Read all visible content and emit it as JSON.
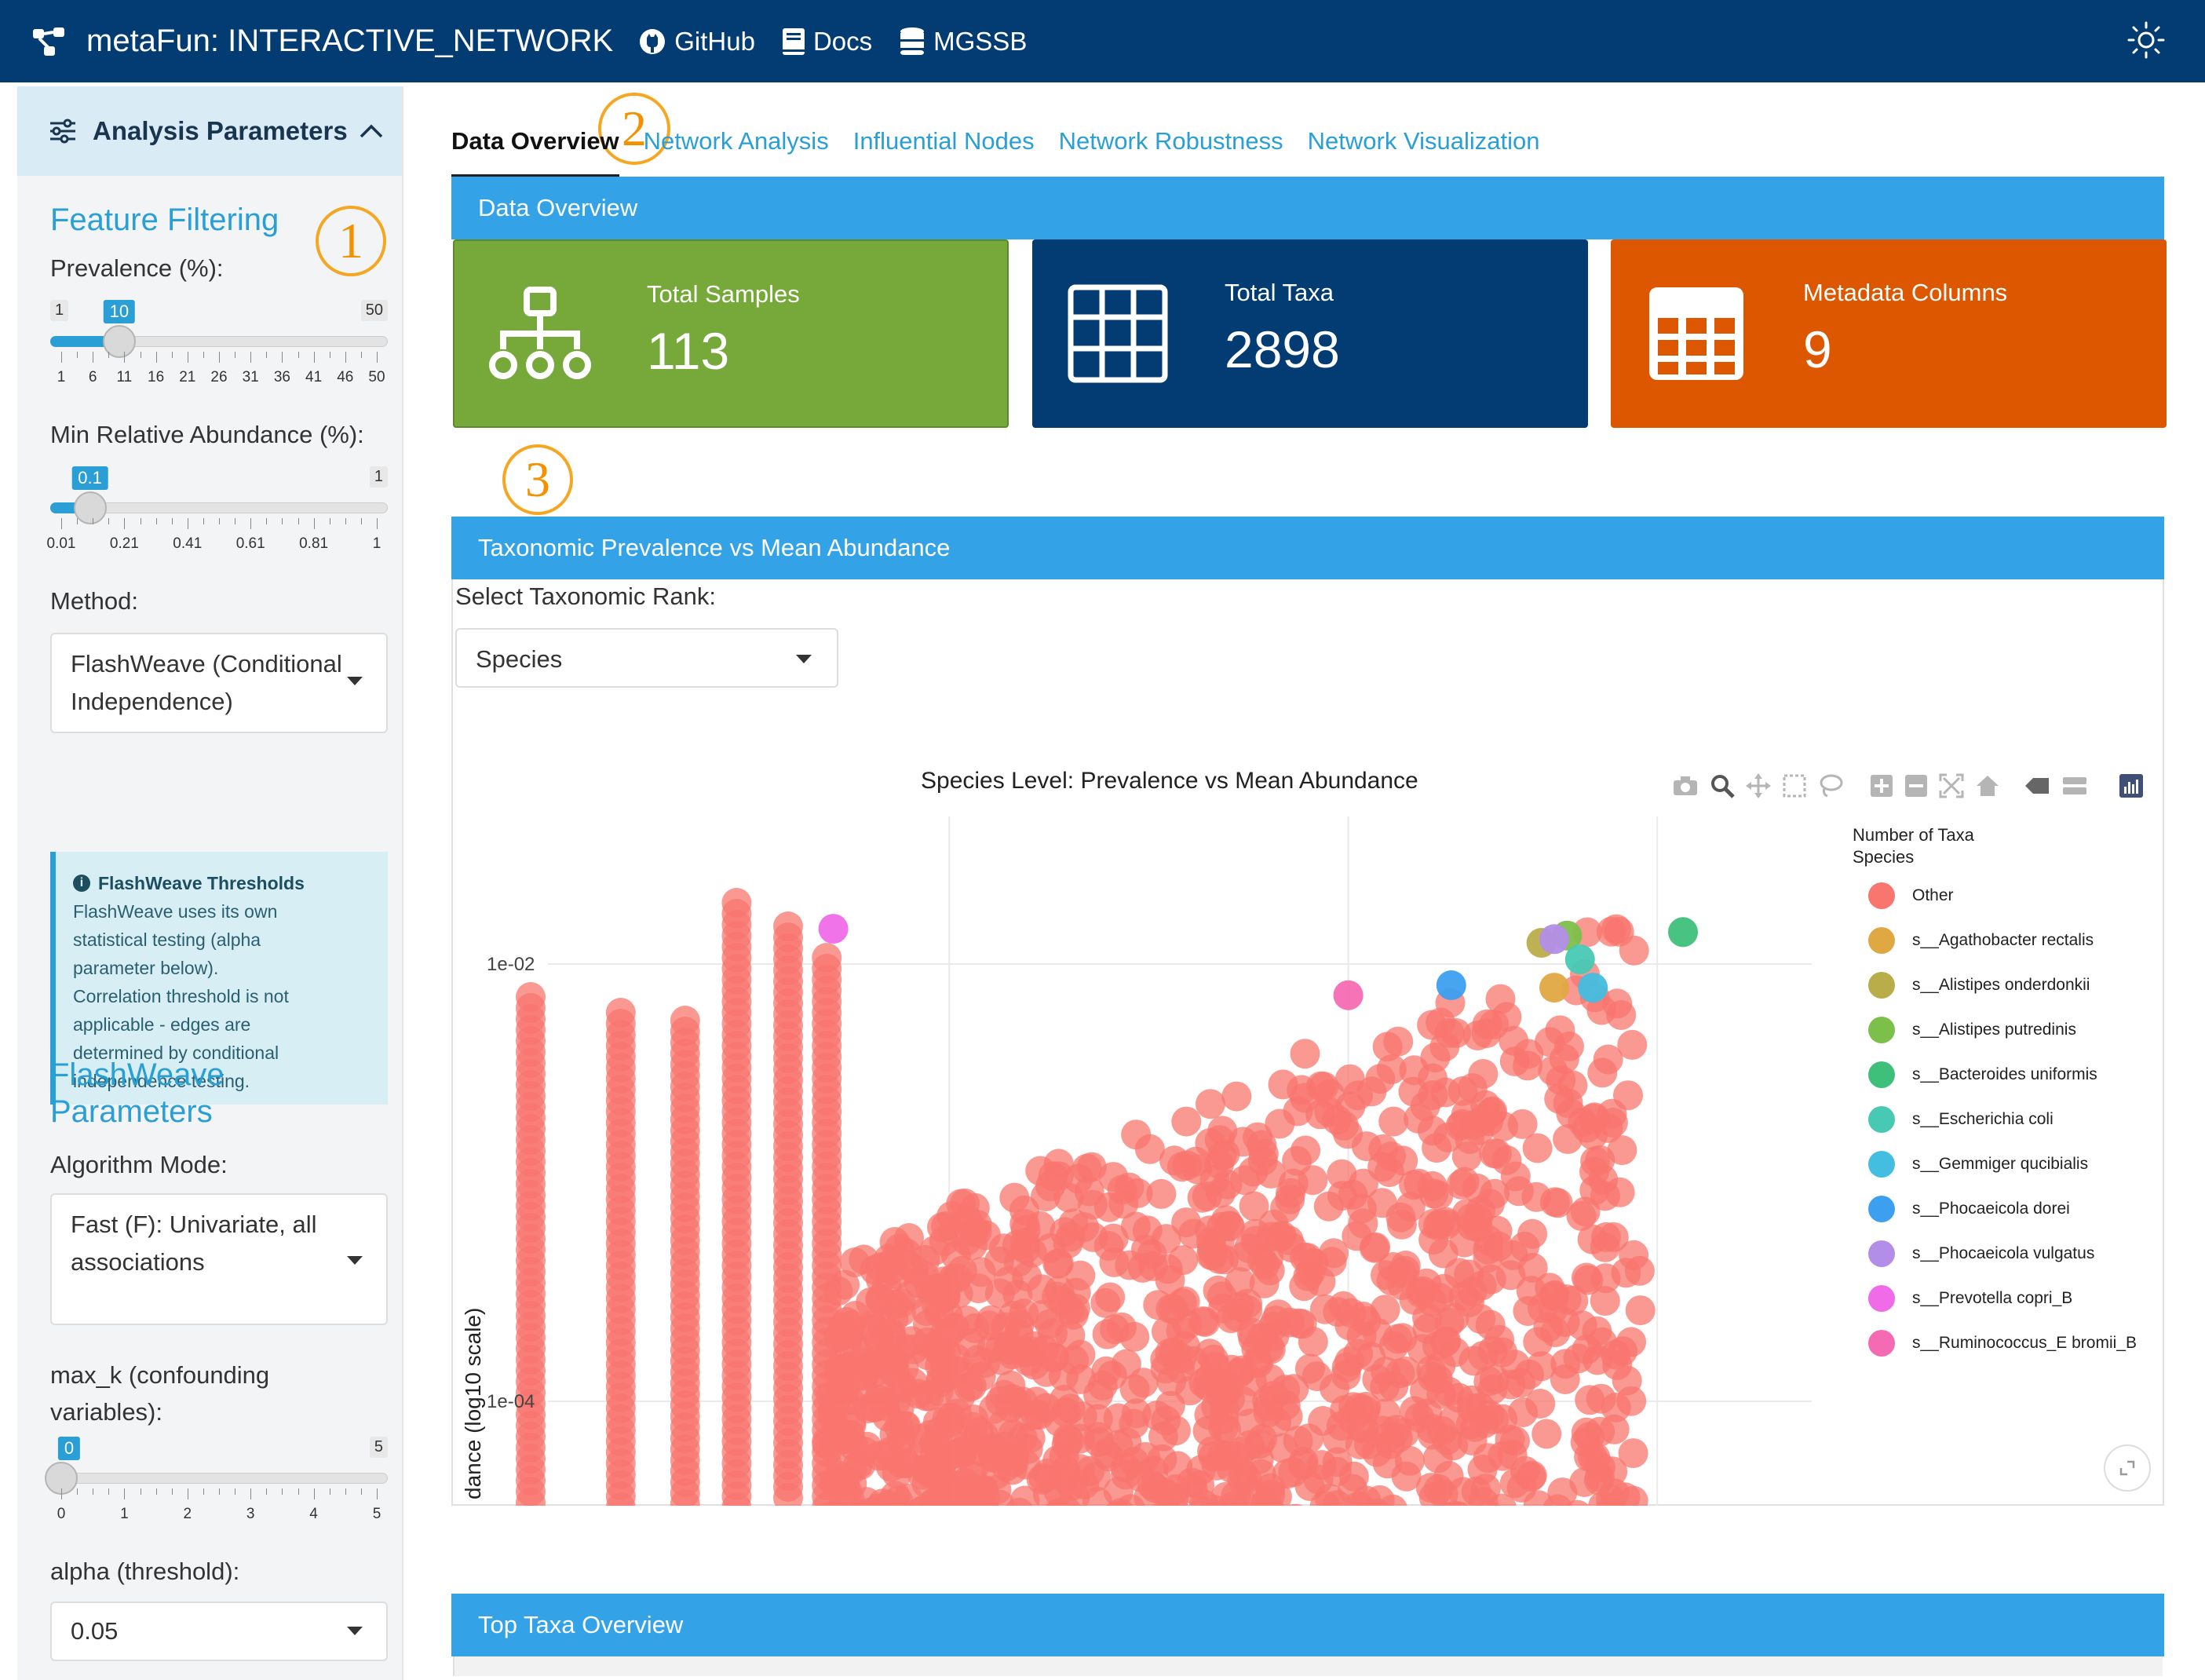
{
  "navbar": {
    "title": "metaFun: INTERACTIVE_NETWORK",
    "links": [
      {
        "label": "GitHub",
        "icon": "github-icon"
      },
      {
        "label": "Docs",
        "icon": "book-icon"
      },
      {
        "label": "MGSSB",
        "icon": "database-icon"
      }
    ],
    "theme_icon": "sun-icon"
  },
  "sidebar": {
    "header": "Analysis Parameters",
    "feature_filtering_title": "Feature Filtering",
    "prevalence": {
      "label": "Prevalence (%):",
      "min": 1,
      "max": 50,
      "value": 10,
      "min_label": "1",
      "max_label": "50",
      "value_label": "10",
      "ticks": [
        "1",
        "6",
        "11",
        "16",
        "21",
        "26",
        "31",
        "36",
        "41",
        "46",
        "50"
      ]
    },
    "abundance": {
      "label": "Min Relative Abundance (%):",
      "min": 0.01,
      "max": 1,
      "value": 0.1,
      "min_label": "",
      "max_label": "1",
      "value_label": "0.1",
      "ticks": [
        "0.01",
        "0.21",
        "0.41",
        "0.61",
        "0.81",
        "1"
      ]
    },
    "method": {
      "label": "Method:",
      "value_line1": "FlashWeave (Conditional",
      "value_line2": "Independence)"
    },
    "info": {
      "title": "FlashWeave Thresholds",
      "lines": [
        "FlashWeave uses its own",
        "statistical testing (alpha",
        "parameter below).",
        "Correlation threshold is not",
        "applicable - edges are",
        "determined by conditional",
        "independence testing."
      ]
    },
    "flashweave_title_line1": "FlashWeave",
    "flashweave_title_line2": "Parameters",
    "algorithm": {
      "label": "Algorithm Mode:",
      "value_line1": "Fast (F): Univariate, all",
      "value_line2": "associations"
    },
    "max_k": {
      "label_line1": "max_k (confounding",
      "label_line2": "variables):",
      "min": 0,
      "max": 5,
      "value": 0,
      "min_label": "",
      "max_label": "5",
      "value_label": "0",
      "ticks": [
        "0",
        "1",
        "2",
        "3",
        "4",
        "5"
      ]
    },
    "alpha": {
      "label": "alpha (threshold):",
      "value": "0.05"
    }
  },
  "annotations": {
    "one": "1",
    "two": "2",
    "three": "3"
  },
  "tabs": [
    "Data Overview",
    "Network Analysis",
    "Influential Nodes",
    "Network Robustness",
    "Network Visualization"
  ],
  "overview": {
    "header": "Data Overview",
    "boxes": [
      {
        "title": "Total Samples",
        "value": "113",
        "color": "#76a83a",
        "icon": "sitemap-icon"
      },
      {
        "title": "Total Taxa",
        "value": "2898",
        "color": "#033c73",
        "icon": "table-icon"
      },
      {
        "title": "Metadata Columns",
        "value": "9",
        "color": "#dd5600",
        "icon": "calendar-table-icon"
      }
    ]
  },
  "prevalence_panel": {
    "header": "Taxonomic Prevalence vs Mean Abundance",
    "select_label": "Select Taxonomic Rank:",
    "select_value": "Species"
  },
  "chart_data": {
    "type": "scatter",
    "title": "Species Level: Prevalence vs Mean Abundance",
    "ylabel": "dance (log10 scale)",
    "y_scale": "log",
    "y_ticks": [
      "1e-02",
      "1e-04"
    ],
    "legend_title_line1": "Number of Taxa",
    "legend_title_line2": "Species",
    "legend_position": "right",
    "grid": true,
    "series": [
      {
        "name": "Other",
        "color": "#f8766d"
      },
      {
        "name": "s__Agathobacter rectalis",
        "color": "#e0a843",
        "points": [
          [
            0.8,
            0.0078
          ]
        ]
      },
      {
        "name": "s__Alistipes onderdonkii",
        "color": "#b9ad4a",
        "points": [
          [
            0.79,
            0.0125
          ]
        ]
      },
      {
        "name": "s__Alistipes putredinis",
        "color": "#7cbf4a",
        "points": [
          [
            0.81,
            0.0135
          ]
        ]
      },
      {
        "name": "s__Bacteroides uniformis",
        "color": "#3fc07a",
        "points": [
          [
            0.9,
            0.014
          ]
        ]
      },
      {
        "name": "s__Escherichia coli",
        "color": "#47c9b4",
        "points": [
          [
            0.82,
            0.0105
          ]
        ]
      },
      {
        "name": "s__Gemmiger qucibialis",
        "color": "#43bde0",
        "points": [
          [
            0.83,
            0.0078
          ]
        ]
      },
      {
        "name": "s__Phocaeicola dorei",
        "color": "#3d9ff0",
        "points": [
          [
            0.72,
            0.008
          ]
        ]
      },
      {
        "name": "s__Phocaeicola vulgatus",
        "color": "#b38ee8",
        "points": [
          [
            0.8,
            0.013
          ]
        ]
      },
      {
        "name": "s__Prevotella copri_B",
        "color": "#f06be8",
        "points": [
          [
            0.24,
            0.0145
          ]
        ]
      },
      {
        "name": "s__Ruminococcus_E bromii_B",
        "color": "#f56bb3",
        "points": [
          [
            0.64,
            0.0072
          ]
        ]
      }
    ]
  },
  "top_taxa": {
    "header": "Top Taxa Overview"
  }
}
